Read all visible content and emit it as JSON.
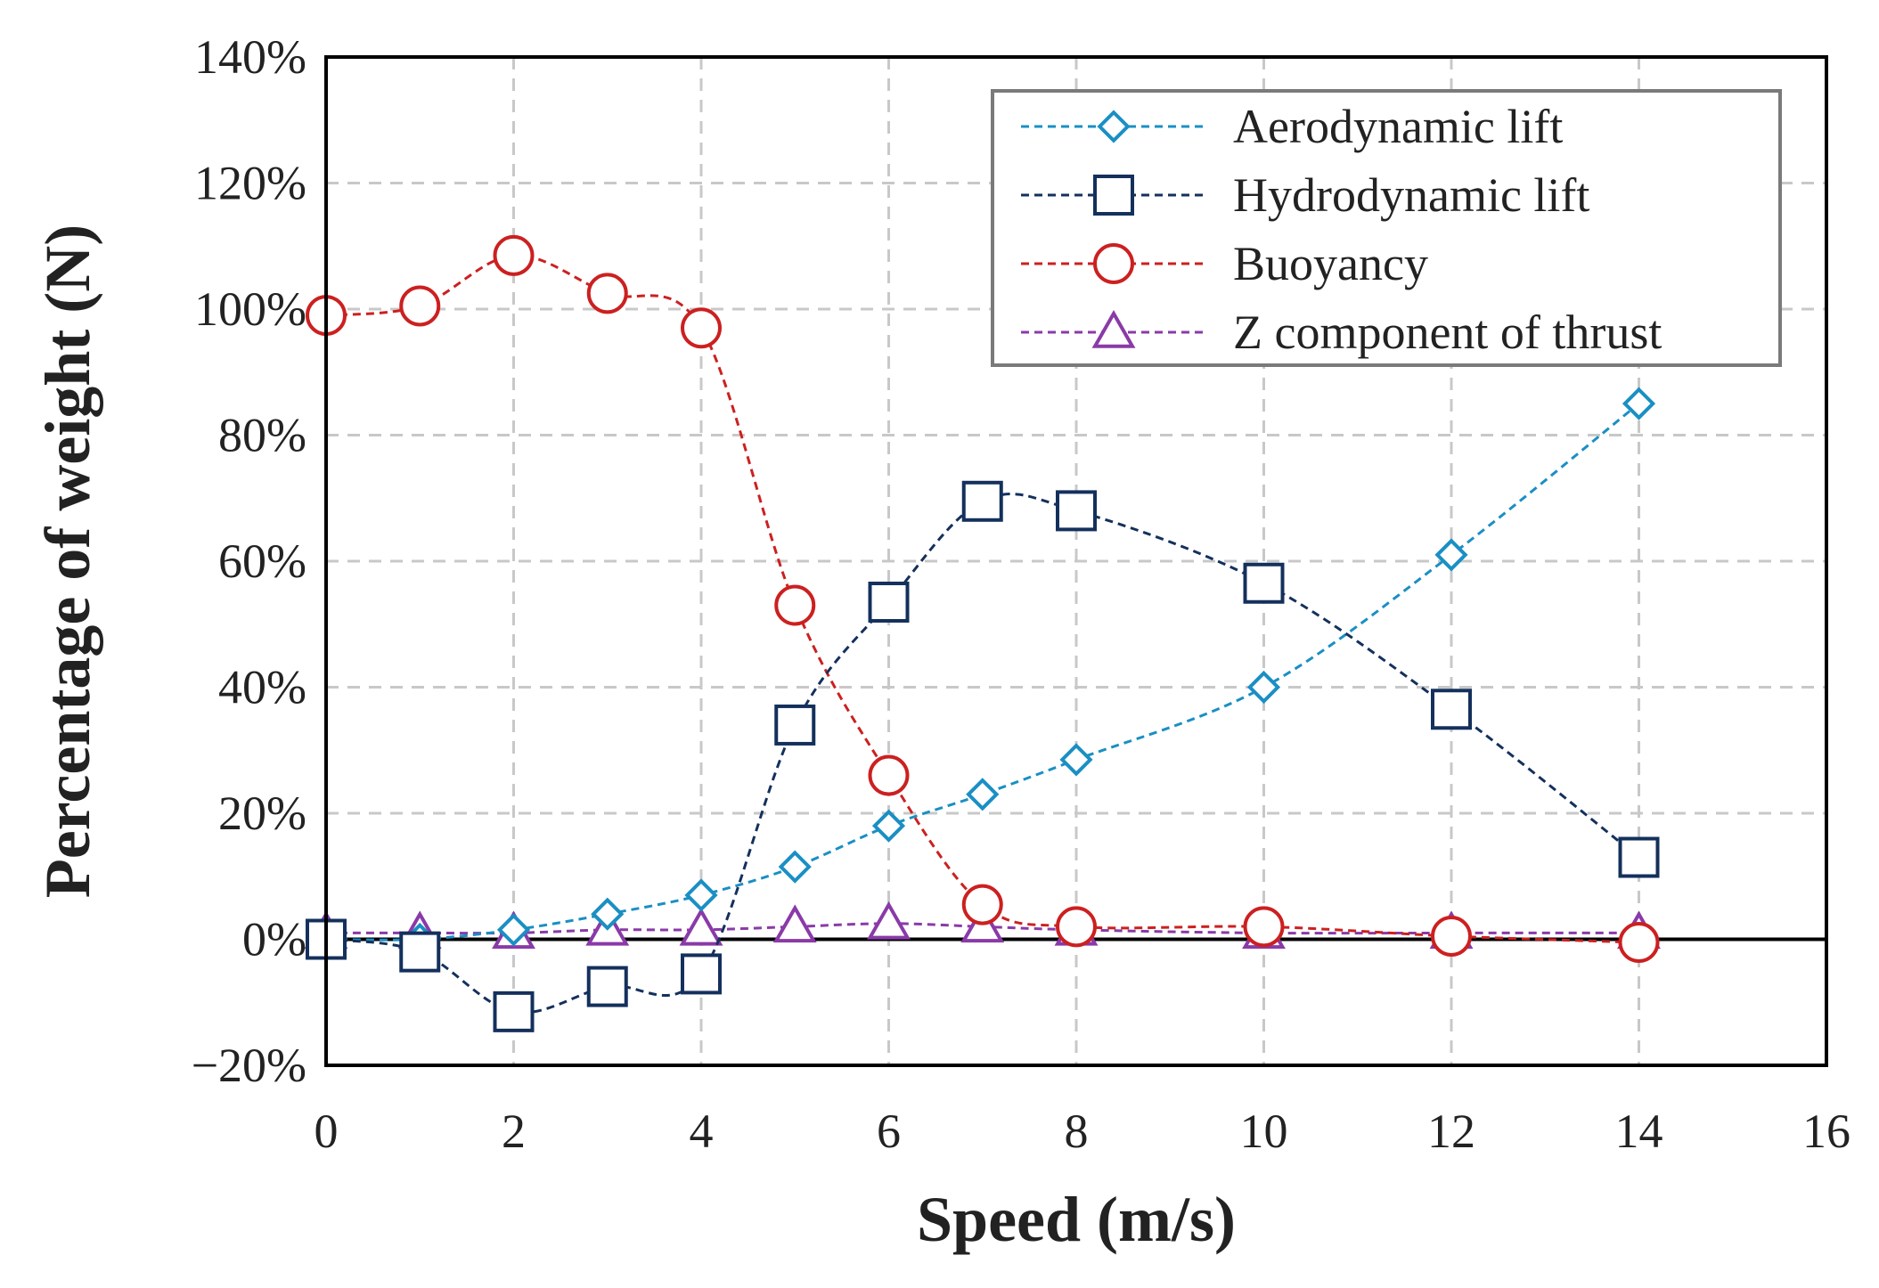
{
  "chart_data": {
    "type": "line",
    "title": "",
    "xlabel": "Speed (m/s)",
    "ylabel": "Percentage of weight (N)",
    "xlim": [
      0,
      16
    ],
    "ylim": [
      -20,
      140
    ],
    "x_ticks": [
      0,
      2,
      4,
      6,
      8,
      10,
      12,
      14,
      16
    ],
    "y_ticks": [
      -20,
      0,
      20,
      40,
      60,
      80,
      100,
      120,
      140
    ],
    "y_tick_labels": [
      "−20%",
      "0%",
      "20%",
      "40%",
      "60%",
      "80%",
      "100%",
      "120%",
      "140%"
    ],
    "grid": true,
    "legend_position": "top-right",
    "x": [
      0,
      1,
      2,
      3,
      4,
      5,
      6,
      7,
      8,
      10,
      12,
      14
    ],
    "series": [
      {
        "name": "Aerodynamic lift",
        "marker": "diamond",
        "color": "#1a8fc4",
        "values": [
          0,
          0,
          1.5,
          4,
          7,
          11.5,
          18,
          23,
          28.5,
          40,
          61,
          85
        ]
      },
      {
        "name": "Hydrodynamic lift",
        "marker": "square",
        "color": "#14305c",
        "values": [
          0,
          -2,
          -11.5,
          -7.5,
          -5.5,
          34,
          53.5,
          69.5,
          68,
          56.5,
          36.5,
          13
        ]
      },
      {
        "name": "Buoyancy",
        "marker": "circle",
        "color": "#cc2020",
        "values": [
          99,
          100.5,
          108.5,
          102.5,
          97,
          53,
          26,
          5.5,
          2,
          2,
          0.5,
          -0.5
        ]
      },
      {
        "name": "Z component of thrust",
        "marker": "triangle",
        "color": "#8a3aa8",
        "values": [
          1,
          1,
          1,
          1.5,
          1.5,
          2,
          2.5,
          2,
          1.5,
          1,
          1,
          1
        ]
      }
    ]
  }
}
